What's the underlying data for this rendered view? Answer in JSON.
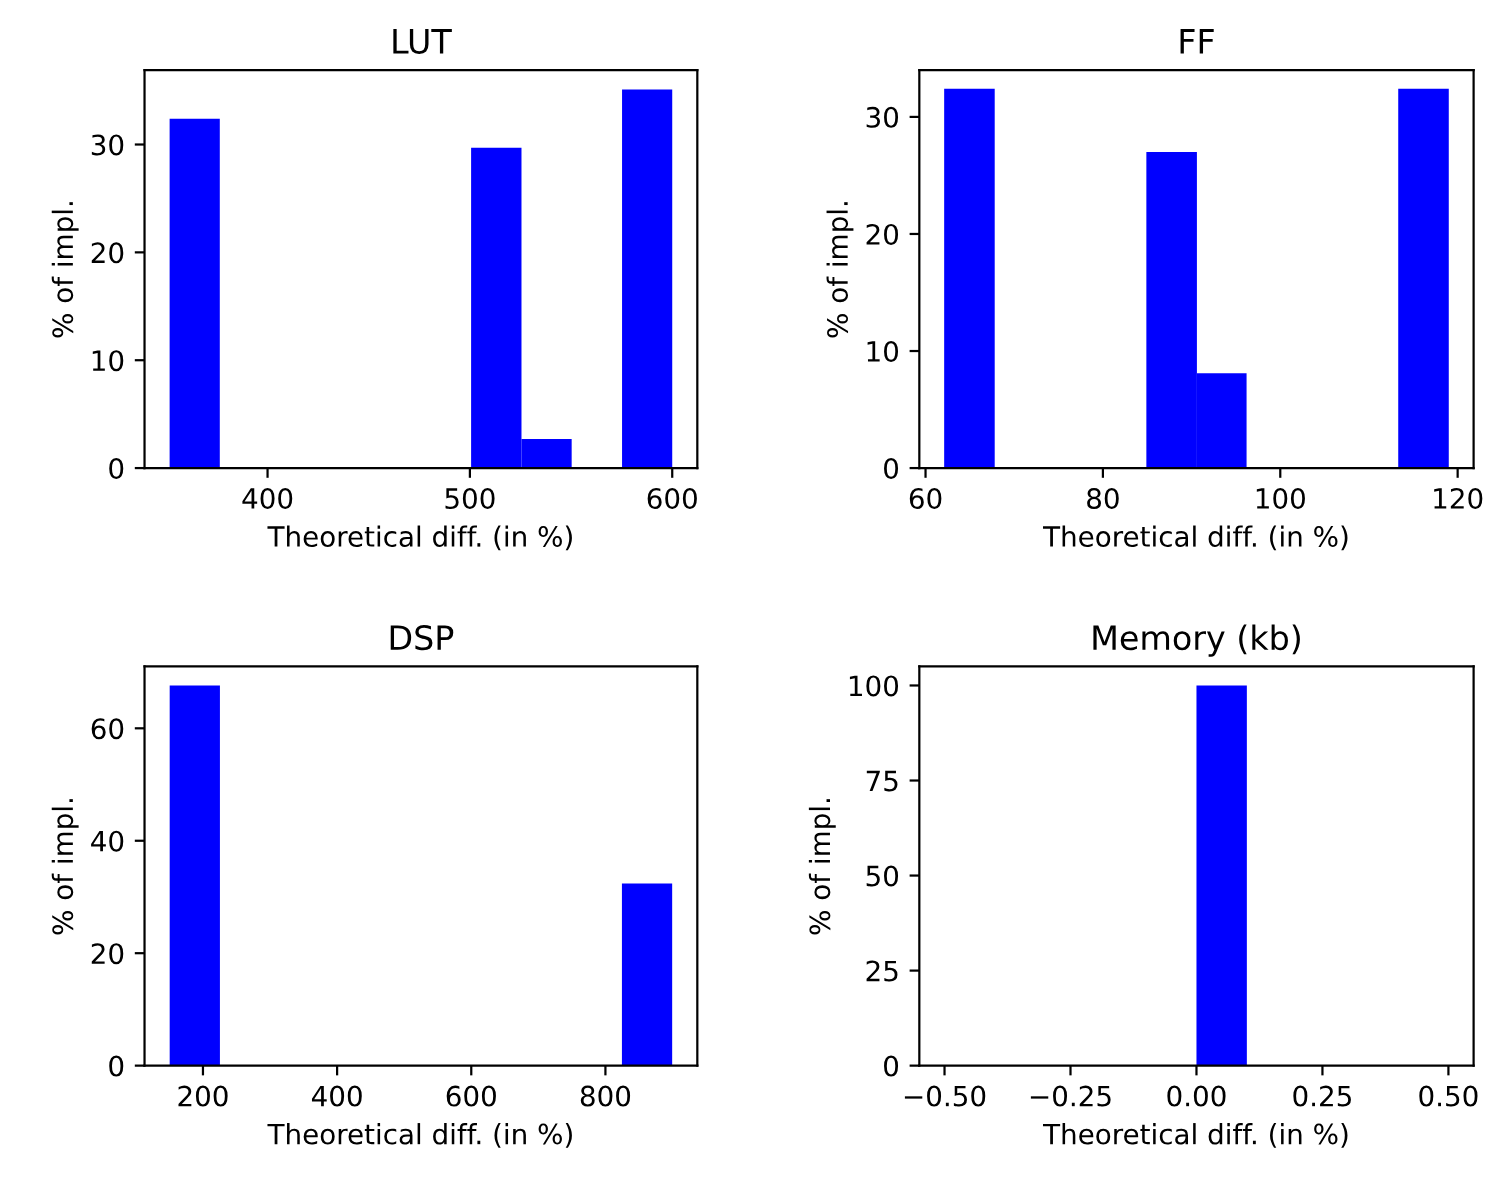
{
  "chart_data": [
    {
      "type": "histogram",
      "title": "LUT",
      "xlabel": "Theoretical diff. (in %)",
      "ylabel": "% of impl.",
      "color": "#0000ff",
      "grid": false,
      "bins": [
        351.6,
        376.4,
        500.6,
        525.5,
        550.3,
        575.2,
        600.0
      ],
      "values": [
        32.4,
        0,
        29.7,
        2.7,
        0,
        35.1
      ],
      "xlim": [
        339.2,
        612.4
      ],
      "ylim": [
        0,
        36.9
      ],
      "xticks": [
        400,
        500,
        600
      ],
      "yticks": [
        0,
        10,
        20,
        30
      ]
    },
    {
      "type": "histogram",
      "title": "FF",
      "xlabel": "Theoretical diff. (in %)",
      "ylabel": "% of impl.",
      "color": "#0000ff",
      "grid": false,
      "bins": [
        62.1,
        67.8,
        84.9,
        90.6,
        96.2,
        113.3,
        119.0
      ],
      "values": [
        32.4,
        0,
        27.0,
        8.1,
        0,
        32.4
      ],
      "xlim": [
        59.3,
        121.8
      ],
      "ylim": [
        0,
        34.0
      ],
      "xticks": [
        60,
        80,
        100,
        120
      ],
      "yticks": [
        0,
        10,
        20,
        30
      ]
    },
    {
      "type": "histogram",
      "title": "DSP",
      "xlabel": "Theoretical diff. (in %)",
      "ylabel": "% of impl.",
      "color": "#0000ff",
      "grid": false,
      "bins": [
        150.4,
        225.3,
        824.6,
        899.5
      ],
      "values": [
        67.6,
        0,
        32.4
      ],
      "xlim": [
        112.9,
        937.0
      ],
      "ylim": [
        0,
        71.0
      ],
      "xticks": [
        200,
        400,
        600,
        800
      ],
      "yticks": [
        0,
        20,
        40,
        60
      ]
    },
    {
      "type": "histogram",
      "title": "Memory (kb)",
      "xlabel": "Theoretical diff. (in %)",
      "ylabel": "% of impl.",
      "color": "#0000ff",
      "grid": false,
      "bins": [
        0.0,
        0.1
      ],
      "values": [
        100
      ],
      "xlim": [
        -0.55,
        0.55
      ],
      "ylim": [
        0,
        105
      ],
      "xticks": [
        {
          "value": -0.5,
          "label": "−0.50"
        },
        {
          "value": -0.25,
          "label": "−0.25"
        },
        {
          "value": 0.0,
          "label": "0.00"
        },
        {
          "value": 0.25,
          "label": "0.25"
        },
        {
          "value": 0.5,
          "label": "0.50"
        }
      ],
      "yticks": [
        0,
        25,
        50,
        75,
        100
      ]
    }
  ]
}
